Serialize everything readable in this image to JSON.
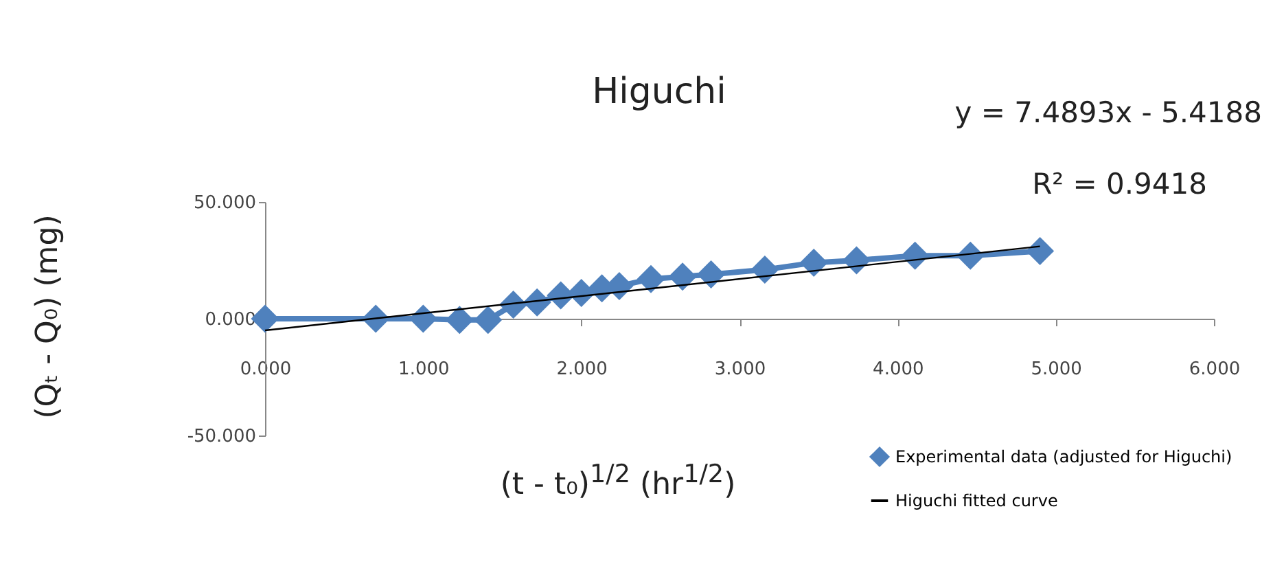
{
  "chart_data": {
    "type": "line",
    "title": "Higuchi",
    "xlabel": "(t - t₀)$^{1/2}$ (hr$^{1/2}$)",
    "ylabel": "(Qₜ - Q₀)  (mg)",
    "annotations": [
      "y = 7.4893x - 5.4188",
      "R² = 0.9418"
    ],
    "xlim": [
      0,
      6
    ],
    "xticks": [
      {
        "value": 0,
        "label": "0.000"
      },
      {
        "value": 1,
        "label": "1.000"
      },
      {
        "value": 2,
        "label": "2.000"
      },
      {
        "value": 3,
        "label": "3.000"
      },
      {
        "value": 4,
        "label": "4.000"
      },
      {
        "value": 5,
        "label": "5.000"
      },
      {
        "value": 6,
        "label": "6.000"
      }
    ],
    "ylim": [
      -50,
      50
    ],
    "yticks": [
      {
        "value": -50,
        "label": "-50.000"
      },
      {
        "value": 0,
        "label": "0.000"
      },
      {
        "value": 50,
        "label": "50.000"
      }
    ],
    "grid": false,
    "legend": "bottom right",
    "marker": "diamond",
    "line_style": "solid",
    "series": [
      {
        "name": "Experimental data (adjusted for Higuchi)",
        "color": "#4f81bd",
        "x": [
          0,
          0.7,
          1.0,
          1.23,
          1.41,
          1.57,
          1.72,
          1.87,
          2.0,
          2.13,
          2.24,
          2.44,
          2.64,
          2.82,
          3.16,
          3.47,
          3.74,
          4.11,
          4.46,
          4.9
        ],
        "values": [
          0,
          0,
          0,
          -0.5,
          -0.5,
          6,
          7,
          10,
          11,
          13,
          14,
          17,
          18,
          19,
          21,
          24,
          25,
          27,
          27,
          29
        ]
      },
      {
        "name": "Higuchi fitted curve",
        "marker": "none",
        "color": "#000000",
        "x": [
          0,
          4.9
        ],
        "values": [
          -5,
          31
        ]
      }
    ]
  }
}
